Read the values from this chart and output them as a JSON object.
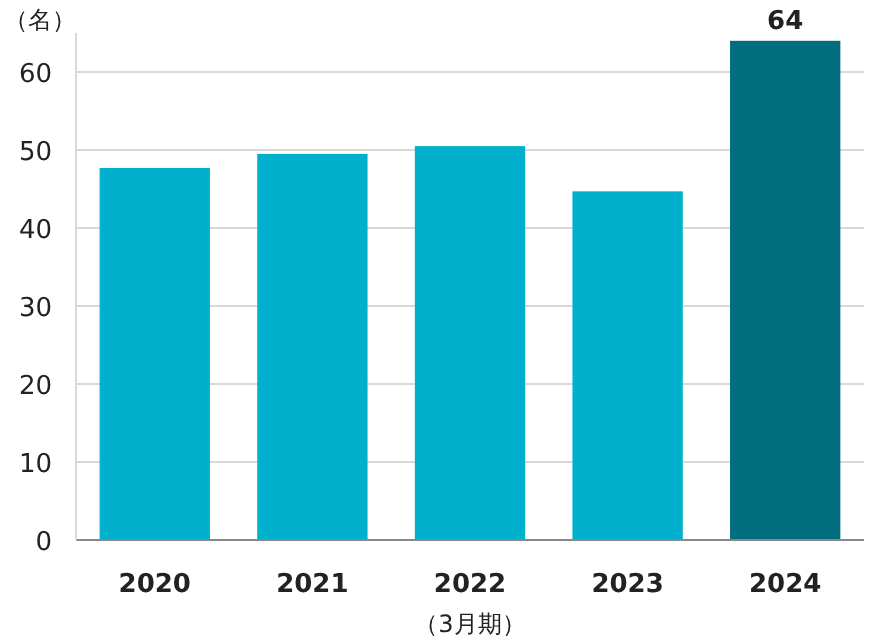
{
  "chart_data": {
    "type": "bar",
    "ylabel": "（名）",
    "xlabel": "（3月期）",
    "categories": [
      "2020",
      "2021",
      "2022",
      "2023",
      "2024"
    ],
    "values": [
      47.7,
      49.5,
      50.5,
      44.7,
      64
    ],
    "colors": [
      "#00b0cc",
      "#00b0cc",
      "#00b0cc",
      "#00b0cc",
      "#006e7f"
    ],
    "value_labels": [
      null,
      null,
      null,
      null,
      "64"
    ],
    "ylim": [
      0,
      65
    ],
    "yticks": [
      0,
      10,
      20,
      30,
      40,
      50,
      60
    ],
    "grid": "y"
  }
}
